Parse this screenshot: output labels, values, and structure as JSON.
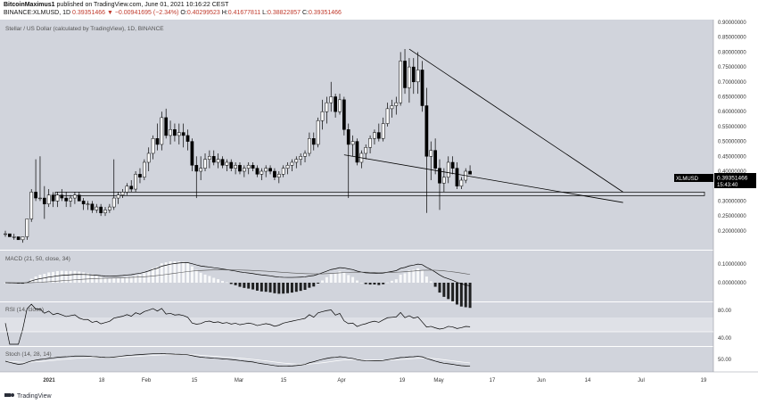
{
  "header": {
    "author": "BitcoinMaximus1",
    "published_text": "published on TradingView.com, June 01, 2021 10:16:22 CEST",
    "symbol": "BINANCE:XLMUSD, 1D",
    "close_value": "0.39351466",
    "change_text": "▼ −0.00941695 (−2.34%)",
    "o_label": "O:",
    "o_value": "0.40299523",
    "h_label": "H:",
    "h_value": "0.41677811",
    "l_label": "L:",
    "l_value": "0.38822857",
    "c_label": "C:",
    "c_value": "0.39351466"
  },
  "chart_title": "Stellar / US Dollar (calculated by TradingView), 1D, BINANCE",
  "colors": {
    "background": "#d1d4dc",
    "candle": "#000000",
    "candle_up_fill": "#ffffff",
    "accent_red": "#c0392b",
    "axis_text": "#333333"
  },
  "price_label": {
    "symbol": "XLMUSD",
    "price": "0.39351466",
    "countdown": "15:43:40"
  },
  "footer": {
    "brand": "TradingView"
  },
  "chart_data": {
    "type": "candlestick",
    "title": "Stellar / US Dollar (calculated by TradingView), 1D, BINANCE",
    "y_ticks": [
      "0.90000000",
      "0.85000000",
      "0.80000000",
      "0.75000000",
      "0.70000000",
      "0.65000000",
      "0.60000000",
      "0.55000000",
      "0.50000000",
      "0.45000000",
      "0.40000000",
      "0.35000000",
      "0.30000000",
      "0.25000000",
      "0.20000000"
    ],
    "ylim": [
      0.16,
      0.91
    ],
    "x_ticks": [
      "2021",
      "18",
      "Feb",
      "15",
      "Mar",
      "15",
      "Apr",
      "19",
      "May",
      "17",
      "Jun",
      "14",
      "Jul",
      "19"
    ],
    "series": [
      {
        "name": "XLMUSD",
        "values": [
          [
            0.19,
            0.2,
            0.18,
            0.19
          ],
          [
            0.19,
            0.19,
            0.18,
            0.18
          ],
          [
            0.18,
            0.19,
            0.17,
            0.18
          ],
          [
            0.18,
            0.18,
            0.17,
            0.17
          ],
          [
            0.17,
            0.18,
            0.16,
            0.18
          ],
          [
            0.18,
            0.24,
            0.17,
            0.24
          ],
          [
            0.24,
            0.34,
            0.23,
            0.33
          ],
          [
            0.33,
            0.44,
            0.3,
            0.31
          ],
          [
            0.31,
            0.45,
            0.3,
            0.31
          ],
          [
            0.31,
            0.35,
            0.24,
            0.29
          ],
          [
            0.29,
            0.34,
            0.28,
            0.32
          ],
          [
            0.32,
            0.33,
            0.28,
            0.3
          ],
          [
            0.3,
            0.33,
            0.28,
            0.32
          ],
          [
            0.32,
            0.34,
            0.3,
            0.31
          ],
          [
            0.31,
            0.33,
            0.28,
            0.3
          ],
          [
            0.3,
            0.32,
            0.28,
            0.31
          ],
          [
            0.31,
            0.33,
            0.29,
            0.32
          ],
          [
            0.32,
            0.33,
            0.3,
            0.3
          ],
          [
            0.3,
            0.31,
            0.27,
            0.29
          ],
          [
            0.29,
            0.3,
            0.27,
            0.29
          ],
          [
            0.29,
            0.3,
            0.26,
            0.27
          ],
          [
            0.27,
            0.29,
            0.26,
            0.28
          ],
          [
            0.28,
            0.29,
            0.25,
            0.26
          ],
          [
            0.26,
            0.28,
            0.25,
            0.27
          ],
          [
            0.27,
            0.29,
            0.26,
            0.28
          ],
          [
            0.28,
            0.44,
            0.27,
            0.31
          ],
          [
            0.31,
            0.33,
            0.29,
            0.32
          ],
          [
            0.32,
            0.34,
            0.31,
            0.33
          ],
          [
            0.33,
            0.36,
            0.32,
            0.35
          ],
          [
            0.35,
            0.37,
            0.33,
            0.34
          ],
          [
            0.34,
            0.4,
            0.33,
            0.39
          ],
          [
            0.39,
            0.41,
            0.36,
            0.38
          ],
          [
            0.38,
            0.44,
            0.37,
            0.43
          ],
          [
            0.43,
            0.48,
            0.4,
            0.46
          ],
          [
            0.46,
            0.52,
            0.44,
            0.51
          ],
          [
            0.51,
            0.56,
            0.47,
            0.49
          ],
          [
            0.49,
            0.6,
            0.47,
            0.58
          ],
          [
            0.58,
            0.61,
            0.51,
            0.52
          ],
          [
            0.52,
            0.57,
            0.49,
            0.54
          ],
          [
            0.54,
            0.56,
            0.5,
            0.52
          ],
          [
            0.52,
            0.56,
            0.49,
            0.53
          ],
          [
            0.53,
            0.56,
            0.48,
            0.52
          ],
          [
            0.52,
            0.54,
            0.47,
            0.5
          ],
          [
            0.5,
            0.51,
            0.4,
            0.42
          ],
          [
            0.42,
            0.45,
            0.31,
            0.4
          ],
          [
            0.4,
            0.45,
            0.37,
            0.41
          ],
          [
            0.41,
            0.46,
            0.4,
            0.44
          ],
          [
            0.44,
            0.47,
            0.41,
            0.45
          ],
          [
            0.45,
            0.47,
            0.42,
            0.43
          ],
          [
            0.43,
            0.46,
            0.41,
            0.44
          ],
          [
            0.44,
            0.45,
            0.41,
            0.42
          ],
          [
            0.42,
            0.44,
            0.4,
            0.43
          ],
          [
            0.43,
            0.44,
            0.4,
            0.41
          ],
          [
            0.41,
            0.43,
            0.39,
            0.42
          ],
          [
            0.42,
            0.43,
            0.39,
            0.4
          ],
          [
            0.4,
            0.42,
            0.38,
            0.41
          ],
          [
            0.41,
            0.43,
            0.39,
            0.42
          ],
          [
            0.42,
            0.43,
            0.4,
            0.41
          ],
          [
            0.41,
            0.42,
            0.38,
            0.39
          ],
          [
            0.39,
            0.41,
            0.37,
            0.4
          ],
          [
            0.4,
            0.42,
            0.38,
            0.41
          ],
          [
            0.41,
            0.42,
            0.39,
            0.4
          ],
          [
            0.4,
            0.41,
            0.37,
            0.38
          ],
          [
            0.38,
            0.4,
            0.36,
            0.39
          ],
          [
            0.39,
            0.42,
            0.38,
            0.41
          ],
          [
            0.41,
            0.43,
            0.39,
            0.42
          ],
          [
            0.42,
            0.44,
            0.4,
            0.43
          ],
          [
            0.43,
            0.45,
            0.41,
            0.44
          ],
          [
            0.44,
            0.46,
            0.42,
            0.45
          ],
          [
            0.45,
            0.47,
            0.43,
            0.46
          ],
          [
            0.46,
            0.53,
            0.45,
            0.51
          ],
          [
            0.51,
            0.53,
            0.47,
            0.49
          ],
          [
            0.49,
            0.58,
            0.48,
            0.57
          ],
          [
            0.57,
            0.64,
            0.54,
            0.6
          ],
          [
            0.6,
            0.65,
            0.56,
            0.63
          ],
          [
            0.63,
            0.7,
            0.6,
            0.65
          ],
          [
            0.65,
            0.66,
            0.58,
            0.6
          ],
          [
            0.6,
            0.66,
            0.59,
            0.64
          ],
          [
            0.64,
            0.65,
            0.52,
            0.54
          ],
          [
            0.54,
            0.56,
            0.31,
            0.49
          ],
          [
            0.49,
            0.52,
            0.45,
            0.5
          ],
          [
            0.5,
            0.51,
            0.42,
            0.43
          ],
          [
            0.43,
            0.47,
            0.41,
            0.46
          ],
          [
            0.46,
            0.49,
            0.44,
            0.48
          ],
          [
            0.48,
            0.52,
            0.46,
            0.51
          ],
          [
            0.51,
            0.54,
            0.49,
            0.53
          ],
          [
            0.53,
            0.56,
            0.5,
            0.51
          ],
          [
            0.51,
            0.58,
            0.5,
            0.56
          ],
          [
            0.56,
            0.63,
            0.55,
            0.61
          ],
          [
            0.61,
            0.64,
            0.58,
            0.62
          ],
          [
            0.62,
            0.65,
            0.59,
            0.63
          ],
          [
            0.63,
            0.8,
            0.62,
            0.77
          ],
          [
            0.77,
            0.81,
            0.66,
            0.68
          ],
          [
            0.68,
            0.78,
            0.63,
            0.75
          ],
          [
            0.75,
            0.78,
            0.66,
            0.7
          ],
          [
            0.7,
            0.8,
            0.66,
            0.74
          ],
          [
            0.74,
            0.77,
            0.6,
            0.62
          ],
          [
            0.62,
            0.68,
            0.26,
            0.45
          ],
          [
            0.45,
            0.5,
            0.37,
            0.47
          ],
          [
            0.47,
            0.51,
            0.39,
            0.41
          ],
          [
            0.41,
            0.44,
            0.27,
            0.36
          ],
          [
            0.36,
            0.41,
            0.33,
            0.38
          ],
          [
            0.38,
            0.45,
            0.36,
            0.43
          ],
          [
            0.43,
            0.45,
            0.39,
            0.41
          ],
          [
            0.41,
            0.43,
            0.34,
            0.35
          ],
          [
            0.35,
            0.38,
            0.34,
            0.37
          ],
          [
            0.37,
            0.41,
            0.36,
            0.4
          ],
          [
            0.4,
            0.42,
            0.39,
            0.39
          ]
        ]
      }
    ],
    "support_zone": [
      0.318,
      0.33
    ],
    "descending_resistance": [
      [
        93,
        0.81
      ],
      [
        133,
        0.33
      ]
    ],
    "descending_support": [
      [
        78,
        0.455
      ],
      [
        133,
        0.295
      ]
    ],
    "indicators": [
      {
        "name": "MACD (21, 50, close, 34)",
        "y_tick": "0.10000000",
        "y_tick2": "0.00000000"
      },
      {
        "name": "RSI (14, close)",
        "y_tick": "80.00",
        "y_tick2": "40.00"
      },
      {
        "name": "Stoch (14, 28, 14)",
        "y_tick": "50.00"
      }
    ]
  }
}
